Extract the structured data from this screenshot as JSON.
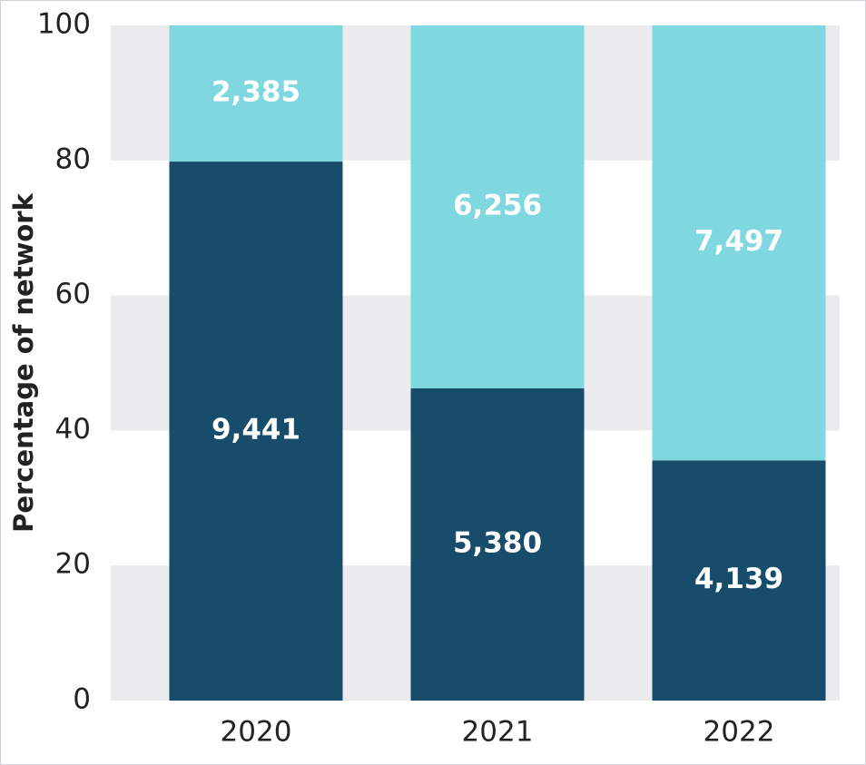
{
  "chart_data": {
    "type": "bar",
    "stacking": "percent",
    "ylabel": "Percentage of network",
    "categories": [
      "2020",
      "2021",
      "2022"
    ],
    "series": [
      {
        "color": "#174c6b",
        "values": [
          9441,
          5380,
          4139
        ],
        "value_labels": [
          "9,441",
          "5,380",
          "4,139"
        ]
      },
      {
        "color": "#7fd8e0",
        "values": [
          2385,
          6256,
          7497
        ],
        "value_labels": [
          "2,385",
          "6,256",
          "7,497"
        ]
      }
    ],
    "ylim": [
      0,
      100
    ],
    "yticks": [
      0,
      20,
      40,
      60,
      80,
      100
    ],
    "grid": "bands",
    "grid_color": "#ebebee"
  }
}
